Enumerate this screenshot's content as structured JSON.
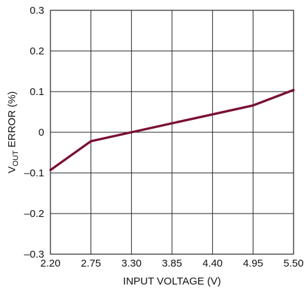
{
  "chart_data": {
    "type": "line",
    "title": "",
    "xlabel": "INPUT VOLTAGE (V)",
    "ylabel_main": "V",
    "ylabel_sub": "OUT",
    "ylabel_rest": " ERROR (%)",
    "xlim": [
      2.2,
      5.5
    ],
    "ylim": [
      -0.3,
      0.3
    ],
    "grid": true,
    "x_ticks": [
      2.2,
      2.75,
      3.3,
      3.85,
      4.4,
      4.95,
      5.5
    ],
    "x_tick_labels": [
      "2.20",
      "2.75",
      "3.30",
      "3.85",
      "4.40",
      "4.95",
      "5.50"
    ],
    "y_ticks": [
      -0.3,
      -0.2,
      -0.1,
      0,
      0.1,
      0.2,
      0.3
    ],
    "y_tick_labels": [
      "–0.3",
      "–0.2",
      "–0.1",
      "0",
      "0.1",
      "0.2",
      "0.3"
    ],
    "series": [
      {
        "color": "#7a1032",
        "x": [
          2.2,
          2.75,
          3.3,
          3.85,
          4.4,
          4.95,
          5.5
        ],
        "y": [
          -0.093,
          -0.022,
          0.0,
          0.022,
          0.044,
          0.066,
          0.104
        ]
      }
    ]
  }
}
